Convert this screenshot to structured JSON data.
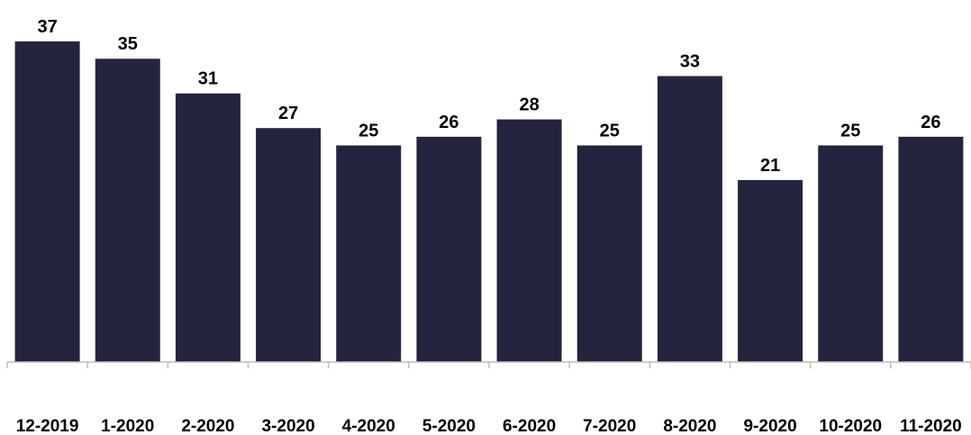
{
  "chart_data": {
    "type": "bar",
    "categories": [
      "12-2019",
      "1-2020",
      "2-2020",
      "3-2020",
      "4-2020",
      "5-2020",
      "6-2020",
      "7-2020",
      "8-2020",
      "9-2020",
      "10-2020",
      "11-2020"
    ],
    "values": [
      37,
      35,
      31,
      27,
      25,
      26,
      28,
      25,
      33,
      21,
      25,
      26
    ],
    "title": "",
    "xlabel": "",
    "ylabel": "",
    "ylim": [
      0,
      37
    ],
    "grid": false,
    "legend": "none",
    "colors": {
      "bar": "#24243f",
      "axis": "#bfbfbf",
      "text": "#000000"
    }
  }
}
